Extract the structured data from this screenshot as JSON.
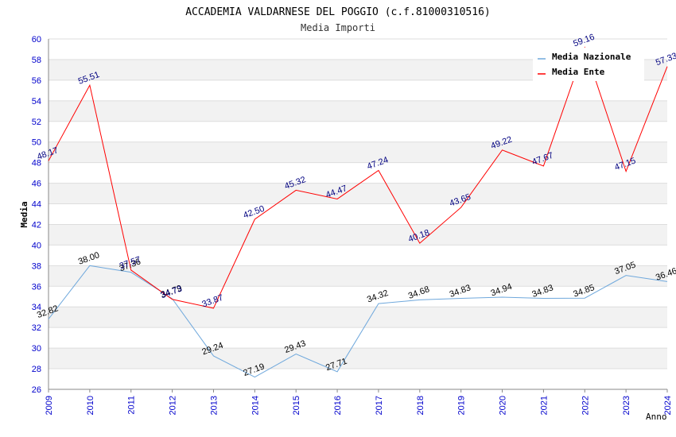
{
  "chart_data": {
    "type": "line",
    "title": "ACCADEMIA VALDARNESE DEL POGGIO (c.f.81000310516)",
    "subtitle": "Media Importi",
    "ylabel": "Media",
    "xlabel": "Anno",
    "ylim": [
      26,
      60
    ],
    "y_ticks": [
      26,
      28,
      30,
      32,
      34,
      36,
      38,
      40,
      42,
      44,
      46,
      48,
      50,
      52,
      54,
      56,
      58,
      60
    ],
    "categories": [
      "2009",
      "2010",
      "2011",
      "2012",
      "2013",
      "2014",
      "2015",
      "2016",
      "2017",
      "2018",
      "2019",
      "2020",
      "2021",
      "2022",
      "2023",
      "2024"
    ],
    "series": [
      {
        "name": "Media Nazionale",
        "color": "#6fa8dc",
        "label_color": "#000000",
        "values": [
          32.82,
          38.0,
          37.36,
          34.79,
          29.24,
          27.19,
          29.43,
          27.71,
          34.32,
          34.68,
          34.83,
          34.94,
          34.83,
          34.85,
          37.05,
          36.46
        ]
      },
      {
        "name": "Media Ente",
        "color": "#ff0000",
        "label_color": "#000080",
        "values": [
          48.17,
          55.51,
          37.57,
          34.73,
          33.87,
          42.5,
          45.32,
          44.47,
          47.24,
          40.18,
          43.65,
          49.22,
          47.67,
          59.16,
          47.15,
          57.33
        ]
      }
    ],
    "grid": true,
    "legend_position": "top-right",
    "colors": {
      "tick_label": "#0000cc",
      "band": "#f2f2f2",
      "grid": "#dddddd"
    }
  }
}
